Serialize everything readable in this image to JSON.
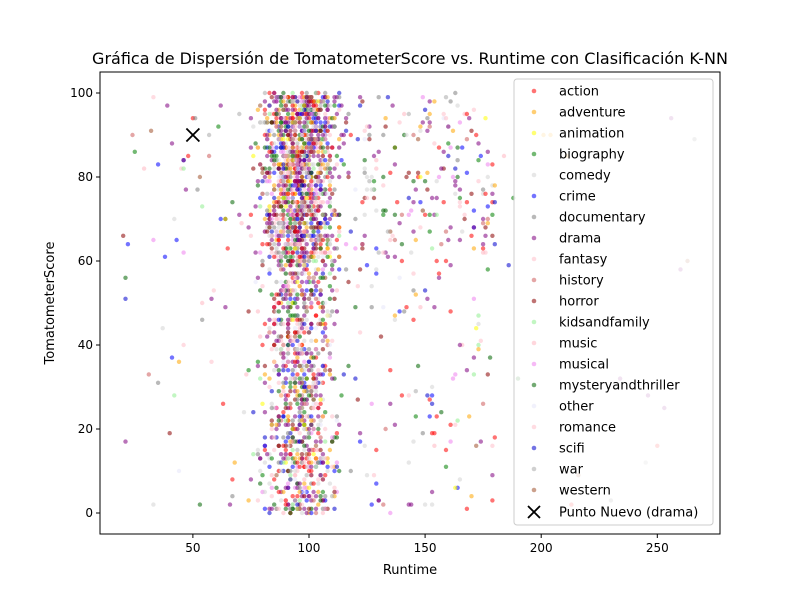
{
  "chart_data": {
    "type": "scatter",
    "title": "Gráfica de Dispersión de TomatometerScore vs. Runtime con Clasificación K-NN",
    "xlabel": "Runtime",
    "ylabel": "TomatometerScore",
    "xlim": [
      10,
      277
    ],
    "ylim": [
      -5,
      105
    ],
    "x_ticks": [
      50,
      100,
      150,
      200,
      250
    ],
    "y_ticks": [
      0,
      20,
      40,
      60,
      80,
      100
    ],
    "grid": false,
    "legend_position": "right",
    "series": [
      {
        "name": "action",
        "color": "#ff0000"
      },
      {
        "name": "adventure",
        "color": "#ffa500"
      },
      {
        "name": "animation",
        "color": "#ffff00"
      },
      {
        "name": "biography",
        "color": "#008000"
      },
      {
        "name": "comedy",
        "color": "#d3d3d3"
      },
      {
        "name": "crime",
        "color": "#0000ff"
      },
      {
        "name": "documentary",
        "color": "#808080"
      },
      {
        "name": "drama",
        "color": "#800080"
      },
      {
        "name": "fantasy",
        "color": "#ffc0cb"
      },
      {
        "name": "history",
        "color": "#cd5c5c"
      },
      {
        "name": "horror",
        "color": "#8b0000"
      },
      {
        "name": "kidsandfamily",
        "color": "#90ee90"
      },
      {
        "name": "music",
        "color": "#ffb6c1"
      },
      {
        "name": "musical",
        "color": "#ee82ee"
      },
      {
        "name": "mysteryandthriller",
        "color": "#006400"
      },
      {
        "name": "other",
        "color": "#e6e6fa"
      },
      {
        "name": "romance",
        "color": "#ffc0cb"
      },
      {
        "name": "scifi",
        "color": "#0000cd"
      },
      {
        "name": "war",
        "color": "#a9a9a9"
      },
      {
        "name": "western",
        "color": "#a0522d"
      }
    ],
    "new_point": {
      "name": "Punto Nuevo (drama)",
      "x": 50,
      "y": 90,
      "marker": "x",
      "color": "#000000"
    }
  }
}
